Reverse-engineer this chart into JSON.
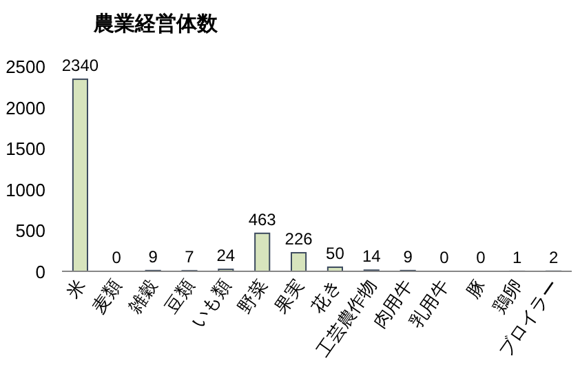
{
  "chart_data": {
    "type": "bar",
    "title": "農業経営体数",
    "categories": [
      "米",
      "麦類",
      "雑穀",
      "豆類",
      "いも類",
      "野菜",
      "果実",
      "花き",
      "工芸農作物",
      "肉用牛",
      "乳用牛",
      "豚",
      "鶏卵",
      "ブロイラー"
    ],
    "values": [
      2340,
      0,
      9,
      7,
      24,
      463,
      226,
      50,
      14,
      9,
      0,
      0,
      1,
      2
    ],
    "color": "#d7e4bd",
    "ylim": [
      0,
      2500
    ],
    "yticks": [
      0,
      500,
      1000,
      1500,
      2000,
      2500
    ],
    "data_labels": true
  }
}
